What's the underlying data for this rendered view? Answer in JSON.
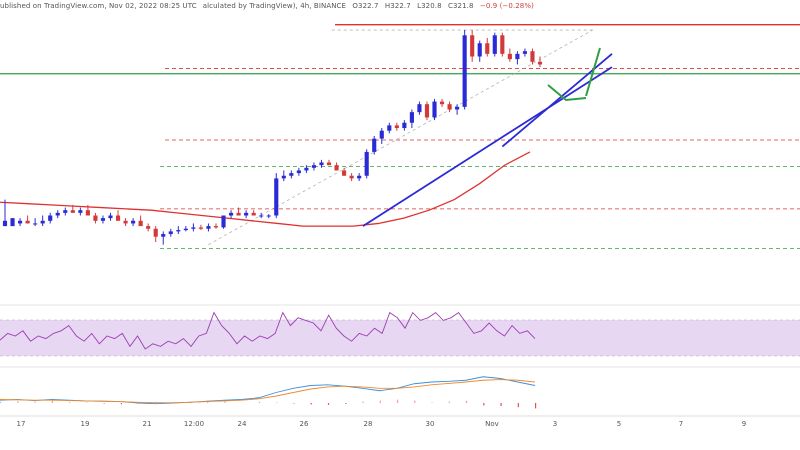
{
  "header": {
    "text": "alculated by TradingView), 4h, BINANCE",
    "open": "O322.7",
    "high": "H322.7",
    "low": "L320.8",
    "close": "C321.8",
    "change": "−0.9 (−0.28%)",
    "timestamp": ", Nov 02, 2022 08:25 UTC",
    "lead": "ublished on TradingView.com"
  },
  "colors": {
    "up": "#2b2bd6",
    "down": "#d23a3a",
    "trendline": "#2b2bd6",
    "ma": "#e03030",
    "green_level": "#2ea043",
    "red_level": "#e03030",
    "rsi": "#9b3fb3",
    "rsi_band": "#e8d7f3",
    "macd_line": "#3a8fe0",
    "signal_line": "#f08a2a"
  },
  "chart_data": {
    "type": "candlestick",
    "timeframe": "4h",
    "exchange": "BINANCE",
    "x_tick_labels": [
      "17",
      "19",
      "21",
      "12:00",
      "24",
      "26",
      "28",
      "30",
      "Nov",
      "3",
      "5",
      "7",
      "9"
    ],
    "last_bar": {
      "open": 322.7,
      "high": 322.7,
      "low": 320.8,
      "close": 321.8,
      "change": -0.9,
      "change_pct": -0.28
    },
    "candles": [
      [
        0.26,
        0.26,
        0.36,
        0.28
      ],
      [
        0.26,
        0.26,
        0.29,
        0.29
      ],
      [
        0.27,
        0.26,
        0.29,
        0.28
      ],
      [
        0.28,
        0.27,
        0.3,
        0.27
      ],
      [
        0.27,
        0.26,
        0.29,
        0.27
      ],
      [
        0.27,
        0.26,
        0.3,
        0.28
      ],
      [
        0.28,
        0.27,
        0.31,
        0.3
      ],
      [
        0.3,
        0.29,
        0.32,
        0.31
      ],
      [
        0.31,
        0.3,
        0.33,
        0.32
      ],
      [
        0.32,
        0.31,
        0.34,
        0.31
      ],
      [
        0.31,
        0.3,
        0.33,
        0.32
      ],
      [
        0.32,
        0.31,
        0.34,
        0.3
      ],
      [
        0.3,
        0.27,
        0.31,
        0.28
      ],
      [
        0.28,
        0.27,
        0.3,
        0.29
      ],
      [
        0.29,
        0.28,
        0.31,
        0.3
      ],
      [
        0.3,
        0.29,
        0.32,
        0.28
      ],
      [
        0.28,
        0.26,
        0.29,
        0.27
      ],
      [
        0.27,
        0.26,
        0.29,
        0.28
      ],
      [
        0.28,
        0.27,
        0.3,
        0.26
      ],
      [
        0.26,
        0.24,
        0.27,
        0.25
      ],
      [
        0.25,
        0.2,
        0.26,
        0.22
      ],
      [
        0.22,
        0.19,
        0.24,
        0.23
      ],
      [
        0.23,
        0.22,
        0.25,
        0.24
      ],
      [
        0.24,
        0.23,
        0.26,
        0.245
      ],
      [
        0.245,
        0.24,
        0.26,
        0.25
      ],
      [
        0.25,
        0.24,
        0.27,
        0.255
      ],
      [
        0.255,
        0.245,
        0.265,
        0.25
      ],
      [
        0.25,
        0.24,
        0.27,
        0.26
      ],
      [
        0.26,
        0.25,
        0.27,
        0.255
      ],
      [
        0.255,
        0.25,
        0.28,
        0.3
      ],
      [
        0.3,
        0.29,
        0.32,
        0.31
      ],
      [
        0.31,
        0.3,
        0.33,
        0.3
      ],
      [
        0.3,
        0.29,
        0.32,
        0.31
      ],
      [
        0.31,
        0.3,
        0.32,
        0.3
      ],
      [
        0.3,
        0.29,
        0.31,
        0.3
      ],
      [
        0.3,
        0.29,
        0.305,
        0.3
      ],
      [
        0.3,
        0.29,
        0.46,
        0.44
      ],
      [
        0.44,
        0.43,
        0.47,
        0.45
      ],
      [
        0.45,
        0.44,
        0.47,
        0.46
      ],
      [
        0.46,
        0.45,
        0.48,
        0.47
      ],
      [
        0.47,
        0.46,
        0.49,
        0.48
      ],
      [
        0.48,
        0.47,
        0.5,
        0.49
      ],
      [
        0.49,
        0.48,
        0.51,
        0.5
      ],
      [
        0.5,
        0.49,
        0.51,
        0.49
      ],
      [
        0.49,
        0.47,
        0.5,
        0.47
      ],
      [
        0.47,
        0.45,
        0.48,
        0.45
      ],
      [
        0.45,
        0.43,
        0.46,
        0.44
      ],
      [
        0.44,
        0.43,
        0.46,
        0.45
      ],
      [
        0.45,
        0.44,
        0.55,
        0.54
      ],
      [
        0.54,
        0.53,
        0.6,
        0.59
      ],
      [
        0.59,
        0.57,
        0.63,
        0.62
      ],
      [
        0.62,
        0.61,
        0.65,
        0.64
      ],
      [
        0.64,
        0.62,
        0.65,
        0.63
      ],
      [
        0.63,
        0.62,
        0.66,
        0.65
      ],
      [
        0.65,
        0.63,
        0.7,
        0.69
      ],
      [
        0.69,
        0.68,
        0.73,
        0.72
      ],
      [
        0.72,
        0.66,
        0.73,
        0.67
      ],
      [
        0.67,
        0.66,
        0.74,
        0.73
      ],
      [
        0.73,
        0.71,
        0.74,
        0.72
      ],
      [
        0.72,
        0.69,
        0.73,
        0.7
      ],
      [
        0.7,
        0.68,
        0.72,
        0.71
      ],
      [
        0.71,
        0.7,
        1.0,
        0.98
      ],
      [
        0.98,
        0.88,
        1.0,
        0.9
      ],
      [
        0.9,
        0.88,
        0.96,
        0.95
      ],
      [
        0.95,
        0.9,
        0.97,
        0.91
      ],
      [
        0.91,
        0.9,
        0.99,
        0.98
      ],
      [
        0.98,
        0.9,
        0.99,
        0.91
      ],
      [
        0.91,
        0.88,
        0.93,
        0.89
      ],
      [
        0.89,
        0.87,
        0.92,
        0.91
      ],
      [
        0.91,
        0.9,
        0.93,
        0.92
      ],
      [
        0.92,
        0.87,
        0.93,
        0.88
      ],
      [
        0.88,
        0.86,
        0.9,
        0.87
      ]
    ],
    "moving_average": [
      0.35,
      0.345,
      0.34,
      0.335,
      0.33,
      0.325,
      0.32,
      0.31,
      0.3,
      0.29,
      0.28,
      0.27,
      0.26,
      0.26,
      0.26,
      0.27,
      0.29,
      0.32,
      0.36,
      0.42,
      0.49,
      0.54
    ],
    "horizontal_levels": [
      {
        "value": 1.02,
        "style": "solid",
        "color": "red"
      },
      {
        "value": 0.855,
        "style": "dashed",
        "color": "red"
      },
      {
        "value": 0.835,
        "style": "solid",
        "color": "green"
      },
      {
        "value": 0.585,
        "style": "dashed",
        "color": "red"
      },
      {
        "value": 0.485,
        "style": "dashed",
        "color": "green"
      },
      {
        "value": 0.325,
        "style": "dashed",
        "color": "red"
      },
      {
        "value": 0.175,
        "style": "dashed",
        "color": "green"
      }
    ],
    "trendlines": [
      {
        "from": [
          47.5,
          0.26
        ],
        "to": [
          94,
          0.86
        ]
      },
      {
        "from": [
          66,
          0.56
        ],
        "to": [
          88.5,
          0.91
        ]
      }
    ],
    "fib_line": {
      "from": [
        27,
        0.19
      ],
      "to": [
        78,
        1.0
      ]
    },
    "rsi": [
      0.42,
      0.55,
      0.5,
      0.6,
      0.4,
      0.5,
      0.45,
      0.55,
      0.6,
      0.7,
      0.5,
      0.4,
      0.55,
      0.35,
      0.5,
      0.45,
      0.55,
      0.3,
      0.5,
      0.25,
      0.35,
      0.3,
      0.4,
      0.35,
      0.45,
      0.3,
      0.5,
      0.55,
      0.95,
      0.7,
      0.55,
      0.35,
      0.5,
      0.4,
      0.5,
      0.45,
      0.55,
      0.95,
      0.7,
      0.85,
      0.8,
      0.75,
      0.6,
      0.9,
      0.65,
      0.5,
      0.4,
      0.55,
      0.5,
      0.65,
      0.55,
      0.95,
      0.85,
      0.65,
      0.95,
      0.8,
      0.85,
      0.95,
      0.8,
      0.85,
      0.95,
      0.75,
      0.55,
      0.6,
      0.75,
      0.6,
      0.5,
      0.7,
      0.55,
      0.6,
      0.45
    ],
    "macd_line": [
      0.28,
      0.3,
      0.27,
      0.3,
      0.28,
      0.26,
      0.25,
      0.24,
      0.2,
      0.18,
      0.2,
      0.22,
      0.25,
      0.28,
      0.3,
      0.35,
      0.5,
      0.62,
      0.7,
      0.72,
      0.68,
      0.62,
      0.55,
      0.62,
      0.75,
      0.8,
      0.82,
      0.85,
      0.95,
      0.9,
      0.8,
      0.7
    ],
    "signal_line": [
      0.3,
      0.29,
      0.28,
      0.28,
      0.27,
      0.26,
      0.25,
      0.24,
      0.22,
      0.21,
      0.21,
      0.22,
      0.24,
      0.26,
      0.28,
      0.32,
      0.4,
      0.5,
      0.6,
      0.66,
      0.68,
      0.66,
      0.62,
      0.62,
      0.66,
      0.72,
      0.76,
      0.8,
      0.85,
      0.87,
      0.85,
      0.8
    ],
    "macd_histogram": [
      0.1,
      0.15,
      0.12,
      0.2,
      0.08,
      0.05,
      -0.05,
      -0.1,
      -0.05,
      0.1,
      0.05,
      0.12,
      0.18,
      0.12,
      0.02,
      0.1,
      0.05,
      -0.05,
      -0.12,
      -0.15,
      -0.08,
      0.12,
      0.2,
      0.28,
      0.2,
      0.05,
      0.12,
      0.18,
      -0.2,
      -0.25,
      -0.35,
      -0.45
    ]
  }
}
